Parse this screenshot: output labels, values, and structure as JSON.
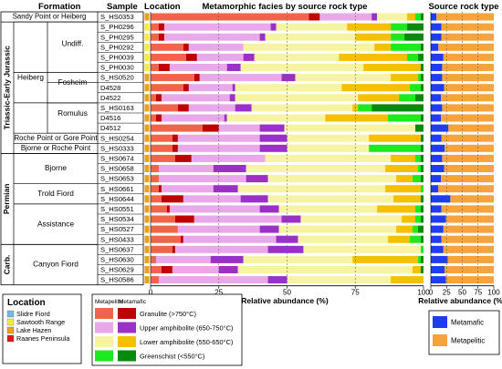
{
  "headers": {
    "period": "",
    "formation": "Formation",
    "sample": "Sample",
    "location": "Location",
    "facies_title": "Metamorphic facies by source rock type",
    "source_title": "Source rock type"
  },
  "periods": [
    "Triassic-Early Jurassic",
    "Permian",
    "Carb."
  ],
  "formations": [
    "Sandy Point or Heiberg",
    "Heiberg",
    "Undiff.",
    "Fosheim",
    "Romulus",
    "Roche Point or Gore Point",
    "Bjorne or Roche Point",
    "Bjorne",
    "Trold Fiord",
    "Assistance",
    "Canyon Fiord"
  ],
  "location_colors": {
    "slidre_fiord": "#74b9e6",
    "sawtooth_range": "#f3ec3e",
    "lake_hazen": "#e8a21a",
    "raanes_peninsula": "#d7191c"
  },
  "facies_colors": {
    "metapelitic_granulite": "#f0654a",
    "metamafic_granulite": "#c00000",
    "metapelitic_upper_amphibolite": "#e9a8e9",
    "metamafic_upper_amphibolite": "#9b30c8",
    "metapelitic_lower_amphibolite": "#f6f3a3",
    "metamafic_lower_amphibolite": "#f5c000",
    "metapelitic_greenschist": "#1ee81e",
    "metamafic_greenschist": "#0a8a0a"
  },
  "source_colors": {
    "metamafic": "#1f3cf0",
    "metapelitic": "#f5a33a"
  },
  "chart_data": [
    {
      "type": "bar",
      "orientation": "horizontal",
      "stacked": true,
      "title": "Metamorphic facies by source rock type",
      "xlabel": "Relative abundance (%)",
      "xlim": [
        0,
        100
      ],
      "xticks": [
        0,
        25,
        50,
        75,
        100
      ],
      "categories": [
        "S_HS0353",
        "S_PH0296",
        "S_PH0295",
        "S_PH0292",
        "S_PH0039",
        "S_PH0030",
        "S_HS0520",
        "D4528",
        "D4522",
        "S_HS0163",
        "D4516",
        "D4512",
        "S_HS0254",
        "S_HS0333",
        "S_HS0674",
        "S_HS0658",
        "S_HS0653",
        "S_HS0661",
        "S_HS0644",
        "S_HS0551",
        "S_HS0534",
        "S_HS0527",
        "S_HS0433",
        "S_HS0637",
        "S_HS0630",
        "S_HS0629",
        "S_HS0586"
      ],
      "sample_location": [
        "lake_hazen",
        "sawtooth_range",
        "sawtooth_range",
        "sawtooth_range",
        "sawtooth_range",
        "sawtooth_range",
        "lake_hazen",
        "lake_hazen",
        "lake_hazen",
        "lake_hazen",
        "lake_hazen",
        "lake_hazen",
        "lake_hazen",
        "lake_hazen",
        "lake_hazen",
        "lake_hazen",
        "lake_hazen",
        "lake_hazen",
        "lake_hazen",
        "lake_hazen",
        "lake_hazen",
        "lake_hazen",
        "lake_hazen",
        "lake_hazen",
        "lake_hazen",
        "lake_hazen",
        "lake_hazen"
      ],
      "series": [
        {
          "name": "Metapelitic Granulite (>750°C)",
          "values": [
            58,
            3,
            3,
            12,
            13,
            3,
            16,
            12,
            2,
            10,
            2,
            19,
            8,
            8,
            9,
            3,
            3,
            3,
            4,
            6,
            9,
            10,
            11,
            8,
            2,
            4,
            3
          ]
        },
        {
          "name": "Metamafic Granulite (>750°C)",
          "values": [
            4,
            2,
            2,
            2,
            4,
            4,
            2,
            2,
            2,
            4,
            2,
            6,
            2,
            2,
            6,
            0,
            0,
            1,
            8,
            1,
            7,
            0,
            1,
            1,
            0,
            4,
            0
          ]
        },
        {
          "name": "Metapelitic Upper amphibolite (650-750°C)",
          "values": [
            19,
            39,
            35,
            20,
            17,
            21,
            30,
            16,
            25,
            17,
            23,
            15,
            30,
            30,
            27,
            20,
            32,
            19,
            21,
            33,
            32,
            30,
            34,
            34,
            20,
            17,
            40
          ]
        },
        {
          "name": "Metamafic Upper amphibolite (650-750°C)",
          "values": [
            2,
            2,
            2,
            0,
            4,
            5,
            5,
            1,
            2,
            6,
            1,
            9,
            10,
            10,
            0,
            12,
            8,
            9,
            10,
            7,
            7,
            7,
            8,
            13,
            12,
            7,
            7
          ]
        },
        {
          "name": "Metapelitic Lower amphibolite (550-650°C)",
          "values": [
            11,
            26,
            33,
            48,
            31,
            45,
            35,
            39,
            45,
            37,
            36,
            48,
            30,
            30,
            46,
            51,
            47,
            54,
            46,
            36,
            37,
            43,
            33,
            43,
            40,
            64,
            38
          ]
        },
        {
          "name": "Metamafic Lower amphibolite (550-650°C)",
          "values": [
            3,
            16,
            13,
            6,
            25,
            21,
            10,
            25,
            15,
            2,
            23,
            0,
            19,
            0,
            9,
            12,
            6,
            13,
            10,
            14,
            5,
            6,
            8,
            0,
            24,
            3,
            12
          ]
        },
        {
          "name": "Metapelitic Greenschist (<550°C)",
          "values": [
            2,
            6,
            5,
            11,
            4,
            0,
            1,
            4,
            6,
            5,
            12,
            0,
            0,
            19,
            2,
            1,
            3,
            1,
            0,
            2,
            2,
            2,
            4,
            1,
            1,
            0,
            0
          ]
        },
        {
          "name": "Metamafic Greenschist (<550°C)",
          "values": [
            1,
            6,
            7,
            1,
            2,
            1,
            1,
            1,
            3,
            19,
            1,
            3,
            1,
            1,
            1,
            1,
            1,
            0,
            1,
            1,
            1,
            2,
            1,
            0,
            1,
            1,
            0
          ]
        }
      ],
      "legend": {
        "header_metapelitic": "Metapelitic",
        "header_metamafic": "Metamafic",
        "entries": [
          {
            "label": "Granulite (>750°C)",
            "pelitic": "metapelitic_granulite",
            "mafic": "metamafic_granulite"
          },
          {
            "label": "Upper amphibolite (650-750°C)",
            "pelitic": "metapelitic_upper_amphibolite",
            "mafic": "metamafic_upper_amphibolite"
          },
          {
            "label": "Lower amphibolite (550-650°C)",
            "pelitic": "metapelitic_lower_amphibolite",
            "mafic": "metamafic_lower_amphibolite"
          },
          {
            "label": "Greenschist (<550°C)",
            "pelitic": "metapelitic_greenschist",
            "mafic": "metamafic_greenschist"
          }
        ]
      },
      "gridlines": true
    },
    {
      "type": "bar",
      "orientation": "horizontal",
      "stacked": true,
      "title": "Source rock type",
      "xlabel": "Relative abundance (%)",
      "xlim": [
        0,
        100
      ],
      "xticks": [
        0,
        25,
        50,
        75,
        100
      ],
      "series": [
        {
          "name": "Metamafic",
          "values": [
            9,
            17,
            17,
            12,
            20,
            18,
            18,
            21,
            16,
            18,
            16,
            28,
            17,
            22,
            18,
            21,
            16,
            12,
            31,
            17,
            24,
            20,
            17,
            20,
            27,
            22,
            24
          ]
        },
        {
          "name": "Metapelitic",
          "values": [
            91,
            83,
            83,
            88,
            80,
            82,
            82,
            79,
            84,
            82,
            84,
            72,
            83,
            78,
            82,
            79,
            84,
            88,
            69,
            83,
            76,
            80,
            83,
            80,
            73,
            78,
            76
          ]
        }
      ]
    }
  ],
  "location_legend": {
    "title": "Location",
    "entries": [
      {
        "label": "Slidre Fiord",
        "key": "slidre_fiord"
      },
      {
        "label": "Sawtooth Range",
        "key": "sawtooth_range"
      },
      {
        "label": "Lake Hazen",
        "key": "lake_hazen"
      },
      {
        "label": "Raanes Peninsula",
        "key": "raanes_peninsula"
      }
    ]
  },
  "source_legend": {
    "entries": [
      {
        "label": "Metamafic",
        "key": "metamafic"
      },
      {
        "label": "Metapelitic",
        "key": "metapelitic"
      }
    ]
  }
}
